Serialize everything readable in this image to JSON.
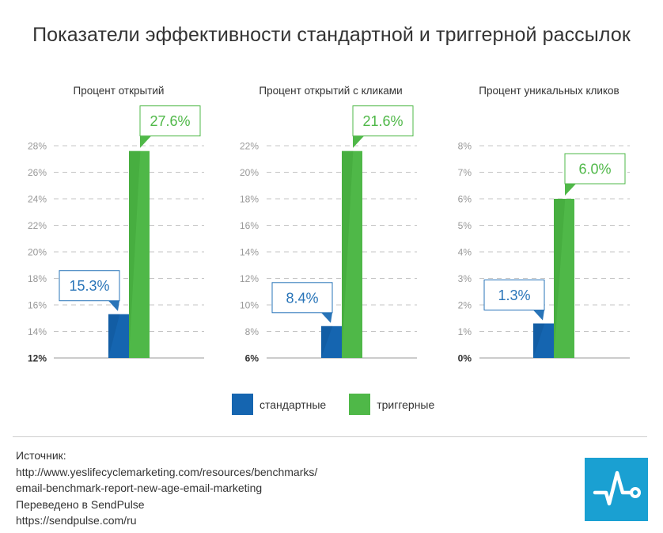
{
  "title": "Показатели эффективности стандартной и триггерной рассылок",
  "colors": {
    "standard": "#1565b0",
    "standard_dark": "#0e4f8e",
    "trigger": "#4fb848",
    "trigger_dark": "#3a9a35",
    "standard_callout": "#2874b8",
    "trigger_callout": "#4fb848",
    "axis_text": "#999999",
    "logo": "#1aa0d2"
  },
  "chart_data": [
    {
      "type": "bar",
      "title": "Процент открытий",
      "categories": [
        "стандартные",
        "триггерные"
      ],
      "values": [
        15.3,
        27.6
      ],
      "data_labels": [
        "15.3%",
        "27.6%"
      ],
      "ylim": [
        12,
        28
      ],
      "yticks": [
        12,
        14,
        16,
        18,
        20,
        22,
        24,
        26,
        28
      ],
      "ytick_labels": [
        "12%",
        "14%",
        "16%",
        "18%",
        "20%",
        "22%",
        "24%",
        "26%",
        "28%"
      ],
      "grid": true
    },
    {
      "type": "bar",
      "title": "Процент открытий с кликами",
      "categories": [
        "стандартные",
        "триггерные"
      ],
      "values": [
        8.4,
        21.6
      ],
      "data_labels": [
        "8.4%",
        "21.6%"
      ],
      "ylim": [
        6,
        22
      ],
      "yticks": [
        6,
        8,
        10,
        12,
        14,
        16,
        18,
        20,
        22
      ],
      "ytick_labels": [
        "6%",
        "8%",
        "10%",
        "12%",
        "14%",
        "16%",
        "18%",
        "20%",
        "22%"
      ],
      "grid": true
    },
    {
      "type": "bar",
      "title": "Процент уникальных кликов",
      "categories": [
        "стандартные",
        "триггерные"
      ],
      "values": [
        1.3,
        6.0
      ],
      "data_labels": [
        "1.3%",
        "6.0%"
      ],
      "ylim": [
        0,
        8
      ],
      "yticks": [
        0,
        1,
        2,
        3,
        4,
        5,
        6,
        7,
        8
      ],
      "ytick_labels": [
        "0%",
        "1%",
        "2%",
        "3%",
        "4%",
        "5%",
        "6%",
        "7%",
        "8%"
      ],
      "grid": true
    }
  ],
  "legend": {
    "items": [
      {
        "label": "стандартные"
      },
      {
        "label": "триггерные"
      }
    ]
  },
  "source": {
    "lines": [
      "Источник:",
      "http://www.yeslifecyclemarketing.com/resources/benchmarks/",
      "email-benchmark-report-new-age-email-marketing",
      "Переведено в SendPulse",
      "https://sendpulse.com/ru"
    ]
  },
  "logo": {
    "icon": "pulse-line-icon"
  }
}
